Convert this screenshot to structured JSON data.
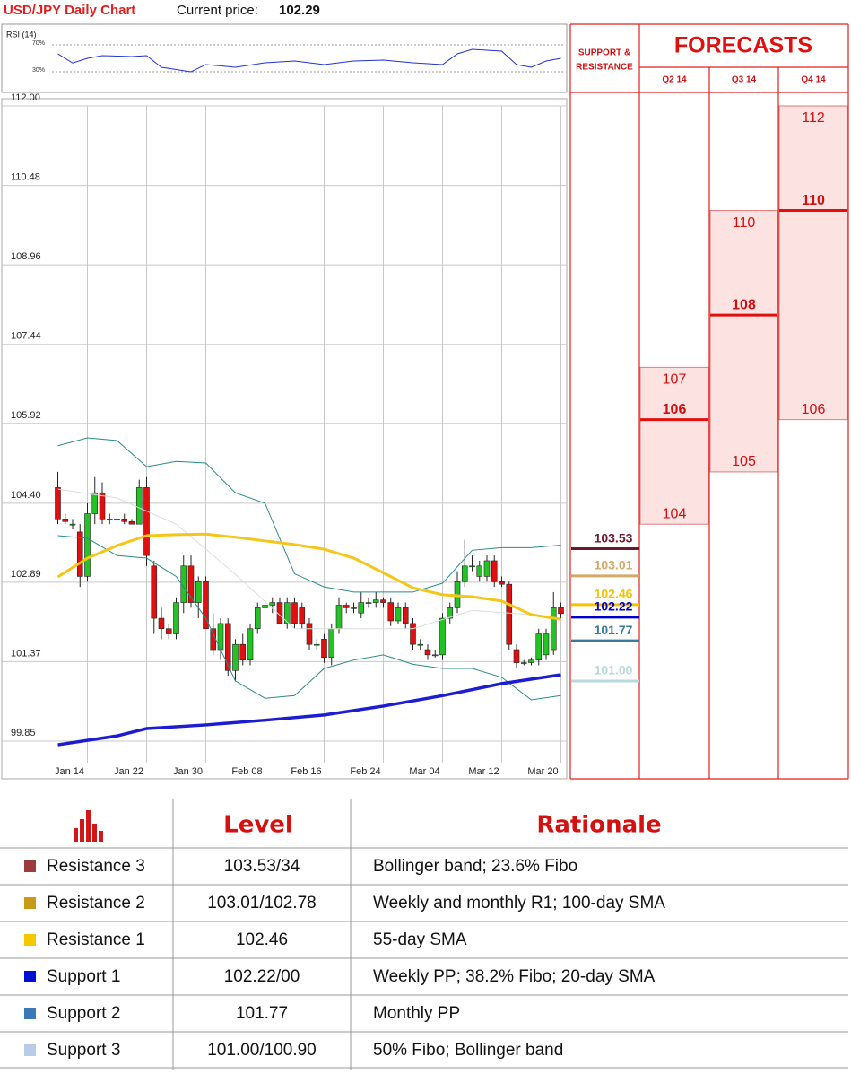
{
  "header": {
    "title": "USD/JPY Daily Chart",
    "price_label": "Current price:",
    "price": 102.29
  },
  "chart_data": [
    {
      "type": "candlestick",
      "categories": [
        null,
        null,
        null,
        null,
        "Jan 14",
        null,
        null,
        null,
        null,
        null,
        null,
        null,
        "Jan 22",
        null,
        null,
        null,
        null,
        null,
        null,
        null,
        "Jan 30",
        null,
        null,
        null,
        null,
        null,
        null,
        null,
        "Feb 08",
        null,
        null,
        null,
        null,
        null,
        null,
        null,
        "Feb 16",
        null,
        null,
        null,
        null,
        null,
        null,
        null,
        "Feb 24",
        null,
        null,
        null,
        null,
        null,
        null,
        null,
        "Mar 04",
        null,
        null,
        null,
        null,
        null,
        null,
        null,
        "Mar 12",
        null,
        null,
        null,
        null,
        null,
        null,
        null,
        "Mar 20"
      ],
      "open": [
        104.7,
        104.1,
        104.0,
        103.85,
        103.0,
        104.2,
        104.6,
        104.1,
        104.1,
        104.1,
        104.05,
        104.0,
        104.7,
        103.2,
        102.2,
        102.0,
        101.9,
        102.5,
        103.2,
        102.5,
        102.9,
        102.0,
        101.6,
        102.1,
        101.2,
        101.7,
        101.4,
        102.0,
        102.4,
        102.45,
        102.5,
        102.1,
        102.5,
        102.4,
        102.1,
        101.7,
        101.8,
        101.45,
        102.0,
        102.45,
        102.4,
        102.3,
        102.5,
        102.5,
        102.55,
        102.5,
        102.15,
        102.4,
        102.1,
        101.7,
        101.6,
        101.5,
        101.5,
        102.2,
        102.4,
        102.9,
        103.2,
        103.0,
        103.0,
        103.3,
        102.9,
        102.85,
        101.6,
        101.35,
        101.35,
        101.4,
        101.5,
        101.6,
        102.4
      ],
      "high": [
        105.0,
        104.2,
        104.1,
        104.0,
        104.4,
        104.9,
        104.8,
        104.2,
        104.2,
        104.2,
        104.1,
        104.85,
        104.9,
        103.3,
        102.4,
        102.1,
        102.6,
        103.4,
        103.4,
        103.0,
        103.0,
        102.3,
        102.2,
        102.2,
        101.8,
        101.9,
        102.1,
        102.5,
        102.5,
        102.6,
        102.6,
        102.6,
        102.6,
        102.5,
        102.2,
        101.8,
        101.9,
        102.1,
        102.6,
        102.5,
        102.5,
        102.7,
        102.6,
        102.7,
        102.6,
        102.6,
        102.5,
        102.5,
        102.2,
        101.8,
        101.7,
        101.6,
        102.3,
        102.5,
        103.1,
        103.7,
        103.4,
        103.3,
        103.4,
        103.4,
        103.0,
        102.9,
        101.7,
        101.4,
        101.45,
        102.0,
        102.0,
        102.7,
        102.5
      ],
      "low": [
        104.0,
        104.0,
        103.9,
        102.8,
        102.9,
        104.0,
        104.0,
        104.0,
        104.0,
        104.0,
        104.0,
        104.0,
        103.2,
        101.9,
        101.8,
        101.8,
        101.8,
        102.3,
        102.4,
        102.2,
        102.0,
        101.5,
        101.4,
        101.1,
        101.0,
        101.3,
        101.3,
        101.9,
        102.35,
        102.3,
        102.1,
        102.0,
        102.0,
        102.0,
        101.6,
        101.6,
        101.35,
        101.3,
        101.9,
        102.3,
        102.3,
        102.2,
        102.4,
        102.4,
        102.4,
        102.05,
        102.1,
        102.0,
        101.6,
        101.6,
        101.4,
        101.45,
        101.4,
        102.1,
        102.3,
        102.8,
        103.1,
        102.9,
        102.9,
        102.8,
        102.8,
        101.6,
        101.25,
        101.3,
        101.3,
        101.3,
        101.4,
        101.5,
        102.2
      ],
      "close": [
        104.1,
        104.05,
        104.0,
        103.0,
        104.2,
        104.6,
        104.1,
        104.1,
        104.1,
        104.05,
        104.0,
        104.7,
        103.4,
        102.2,
        102.0,
        101.9,
        102.5,
        103.2,
        102.5,
        102.9,
        102.0,
        101.6,
        102.1,
        101.2,
        101.7,
        101.4,
        102.0,
        102.4,
        102.45,
        102.5,
        102.1,
        102.5,
        102.1,
        102.1,
        101.7,
        101.7,
        101.45,
        102.0,
        102.45,
        102.4,
        102.4,
        102.5,
        102.5,
        102.55,
        102.5,
        102.15,
        102.4,
        102.1,
        101.7,
        101.7,
        101.5,
        101.5,
        102.2,
        102.4,
        102.9,
        103.2,
        103.2,
        103.2,
        103.3,
        102.9,
        102.85,
        101.7,
        101.35,
        101.35,
        101.4,
        101.9,
        101.9,
        102.4,
        102.29
      ],
      "up_color": "#22c322",
      "down_color": "#e01010",
      "ylim": [
        99.85,
        112
      ],
      "yticks": [
        {
          "value": 112,
          "label": "112.00"
        },
        110.48,
        108.96,
        107.44,
        105.92,
        {
          "value": 104.4,
          "label": "104.40"
        },
        102.89,
        101.37,
        99.85
      ],
      "grid": true,
      "overlays": [
        {
          "color": "#2a8a8a",
          "width": 1,
          "x": [
            0,
            4,
            8,
            12,
            16,
            20,
            24,
            28,
            32,
            36,
            40,
            44,
            48,
            52,
            56,
            60,
            64,
            68
          ],
          "values": [
            105.5,
            105.65,
            105.6,
            105.1,
            105.2,
            105.17,
            104.6,
            104.4,
            103.05,
            102.8,
            102.7,
            102.7,
            102.7,
            102.87,
            103.5,
            103.55,
            103.55,
            103.6
          ]
        },
        {
          "color": "#2a8a8a",
          "width": 1,
          "x": [
            0,
            4,
            8,
            12,
            16,
            20,
            24,
            28,
            32,
            36,
            40,
            44,
            48,
            52,
            56,
            60,
            64,
            68
          ],
          "values": [
            103.78,
            103.73,
            103.4,
            103.35,
            103.0,
            102.2,
            101.0,
            100.67,
            100.72,
            101.24,
            101.4,
            101.5,
            101.32,
            101.24,
            101.24,
            101.07,
            100.64,
            100.72
          ]
        },
        {
          "color": "#dcdcdc",
          "width": 1,
          "x": [
            0,
            8,
            16,
            24,
            32,
            40,
            48,
            56,
            64,
            68
          ],
          "values": [
            104.67,
            104.5,
            104.0,
            103.04,
            102.0,
            102.0,
            102.0,
            102.35,
            102.27,
            102.18
          ]
        },
        {
          "color": "#f5c518",
          "width": 3,
          "x": [
            0,
            4,
            8,
            12,
            16,
            20,
            24,
            28,
            32,
            36,
            40,
            44,
            48,
            52,
            56,
            60,
            64,
            68
          ],
          "values": [
            102.99,
            103.35,
            103.59,
            103.78,
            103.8,
            103.81,
            103.75,
            103.68,
            103.61,
            103.52,
            103.35,
            103.07,
            102.78,
            102.65,
            102.61,
            102.53,
            102.27,
            102.18
          ]
        },
        {
          "color": "#1c1cd0",
          "width": 3.5,
          "x": [
            0,
            8,
            12,
            20,
            28,
            36,
            44,
            52,
            60,
            68
          ],
          "values": [
            99.78,
            99.95,
            100.09,
            100.16,
            100.25,
            100.35,
            100.52,
            100.72,
            100.95,
            101.12
          ]
        }
      ]
    },
    {
      "type": "line",
      "title": "RSI (14)",
      "color": "#2030d0",
      "x": [
        0,
        2,
        4,
        6,
        10,
        12,
        14,
        18,
        20,
        24,
        28,
        32,
        36,
        40,
        44,
        48,
        52,
        54,
        56,
        60,
        62,
        64,
        66,
        68
      ],
      "values": [
        56.7,
        43,
        50,
        54,
        52.7,
        54,
        36.7,
        30,
        40.7,
        36.7,
        43.3,
        46,
        40.7,
        46,
        47.3,
        43.3,
        40.7,
        56.7,
        63.3,
        60.7,
        40.7,
        36.7,
        46,
        50
      ],
      "ylim": [
        0,
        100
      ],
      "yticks": [
        {
          "value": 70,
          "label": "70%"
        },
        {
          "value": 30,
          "label": "30%"
        }
      ]
    }
  ],
  "levels": {
    "title": [
      "SUPPORT &",
      "RESISTANCE"
    ],
    "values": [
      103.53,
      103.01,
      102.46,
      102.22,
      101.77,
      101
    ],
    "value_labels": [
      "103.53",
      "103.01",
      "102.46",
      "102.22",
      "101.77",
      "101.00"
    ],
    "colors": [
      "#6b1a2e",
      "#d4a867",
      "#f2c500",
      "#0000cc",
      "#3a7a9a",
      "#b8d8dc"
    ]
  },
  "forecasts": {
    "title": "FORECASTS",
    "quarters": [
      {
        "label": "Q2 14",
        "high": 107,
        "central": 106,
        "low": 104
      },
      {
        "label": "Q3 14",
        "high": 110,
        "central": 108,
        "low": 105
      },
      {
        "label": "Q4 14",
        "high": 112,
        "central": 110,
        "low": 106
      }
    ]
  },
  "table": {
    "header": [
      "Level",
      "Rationale"
    ],
    "rows": [
      [
        "Resistance 3",
        "103.53/34",
        "Bollinger band; 23.6% Fibo"
      ],
      [
        "Resistance 2",
        "103.01/102.78",
        "Weekly and monthly R1; 100-day SMA"
      ],
      [
        "Resistance 1",
        "102.46",
        "55-day SMA"
      ],
      [
        "Support 1",
        "102.22/00",
        "Weekly PP; 38.2% Fibo; 20-day SMA"
      ],
      [
        "Support 2",
        "101.77",
        "Monthly PP"
      ],
      [
        "Support 3",
        "101.00/100.90",
        "50% Fibo; Bollinger band"
      ]
    ],
    "colors": [
      "#9b3b3b",
      "#c89a18",
      "#f5c800",
      "#0010d0",
      "#3a78b8",
      "#b8cce8"
    ]
  }
}
